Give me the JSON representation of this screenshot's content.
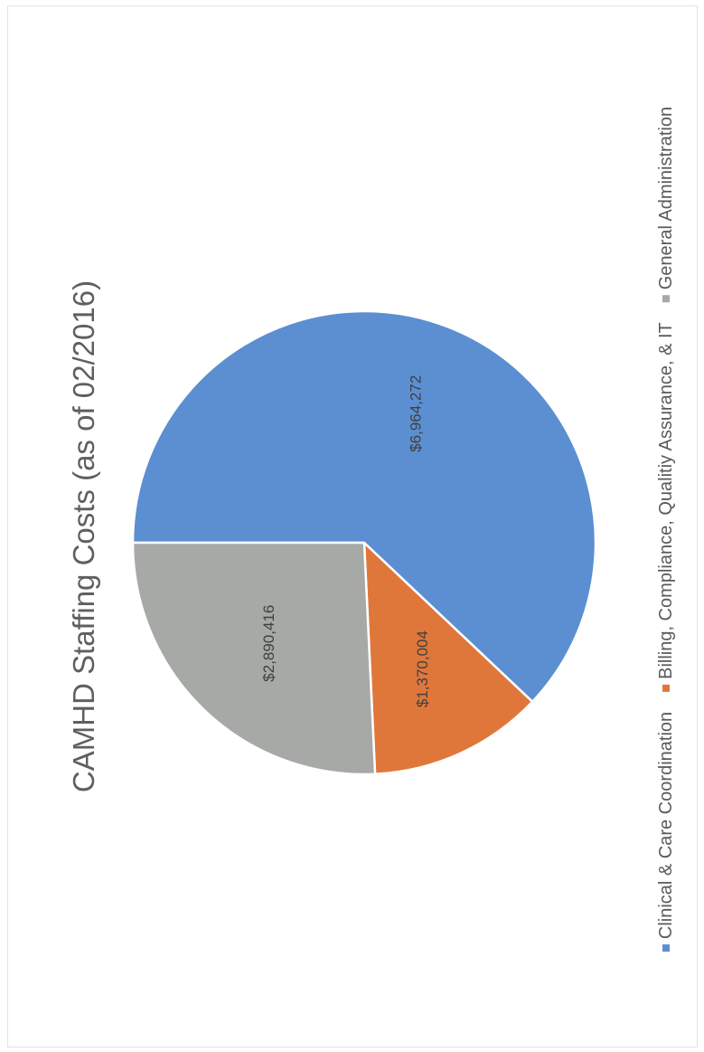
{
  "chart_data": {
    "type": "pie",
    "title": "CAMHD Staffing Costs (as of 02/2016)",
    "slices": [
      {
        "name": "Clinical & Care Coordination",
        "value": 6964272,
        "label": "$6,964,272",
        "color": "#5b8fd1"
      },
      {
        "name": "Billing, Compliance, Qualitiy Assurance, & IT",
        "value": 1370004,
        "label": "$1,370,004",
        "color": "#e0773a"
      },
      {
        "name": "General Administration",
        "value": 2890416,
        "label": "$2,890,416",
        "color": "#a6a9a6"
      }
    ],
    "legend_position": "bottom"
  }
}
